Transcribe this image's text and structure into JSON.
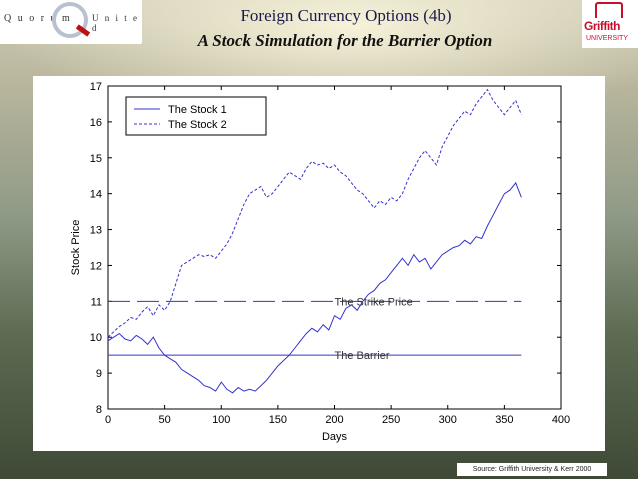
{
  "header": {
    "title": "Foreign Currency Options (4b)",
    "subtitle": "A Stock Simulation for the Barrier Option"
  },
  "logos": {
    "left_word1": "Q u o r u m",
    "left_word2": "U n i t e d",
    "right_name": "Griffith",
    "right_sub": "UNIVERSITY"
  },
  "source": "Source: Griffith University & Kerr 2000",
  "colors": {
    "line": "#3333cc",
    "header": "#1a1a4a"
  },
  "chart_data": {
    "type": "line",
    "title": "",
    "xlabel": "Days",
    "ylabel": "Stock Price",
    "xlim": [
      0,
      400
    ],
    "ylim": [
      8,
      17
    ],
    "xticks": [
      0,
      50,
      100,
      150,
      200,
      250,
      300,
      350,
      400
    ],
    "yticks": [
      8,
      9,
      10,
      11,
      12,
      13,
      14,
      15,
      16,
      17
    ],
    "grid": false,
    "legend_position": "top-left",
    "series": [
      {
        "name": "The Stock 1",
        "style": "solid",
        "x": [
          0,
          5,
          10,
          15,
          20,
          25,
          30,
          35,
          40,
          45,
          50,
          55,
          60,
          65,
          70,
          75,
          80,
          85,
          90,
          95,
          100,
          105,
          110,
          115,
          120,
          125,
          130,
          135,
          140,
          145,
          150,
          155,
          160,
          165,
          170,
          175,
          180,
          185,
          190,
          195,
          200,
          205,
          210,
          215,
          220,
          225,
          230,
          235,
          240,
          245,
          250,
          255,
          260,
          265,
          270,
          275,
          280,
          285,
          290,
          295,
          300,
          305,
          310,
          315,
          320,
          325,
          330,
          335,
          340,
          345,
          350,
          355,
          360,
          365
        ],
        "values": [
          9.9,
          10.0,
          10.1,
          9.95,
          9.9,
          10.05,
          9.95,
          9.8,
          10.0,
          9.7,
          9.5,
          9.4,
          9.3,
          9.1,
          9.0,
          8.9,
          8.8,
          8.65,
          8.6,
          8.5,
          8.75,
          8.55,
          8.45,
          8.6,
          8.5,
          8.55,
          8.5,
          8.65,
          8.8,
          9.0,
          9.2,
          9.35,
          9.5,
          9.7,
          9.9,
          10.1,
          10.25,
          10.15,
          10.35,
          10.2,
          10.6,
          10.5,
          10.8,
          10.9,
          10.75,
          11.0,
          11.2,
          11.3,
          11.5,
          11.6,
          11.8,
          12.0,
          12.2,
          12.0,
          12.3,
          12.1,
          12.2,
          11.9,
          12.1,
          12.3,
          12.4,
          12.5,
          12.55,
          12.7,
          12.6,
          12.8,
          12.75,
          13.1,
          13.4,
          13.7,
          14.0,
          14.1,
          14.3,
          13.9
        ]
      },
      {
        "name": "The Stock 2",
        "style": "dashed",
        "x": [
          0,
          5,
          10,
          15,
          20,
          25,
          30,
          35,
          40,
          45,
          50,
          55,
          60,
          65,
          70,
          75,
          80,
          85,
          90,
          95,
          100,
          105,
          110,
          115,
          120,
          125,
          130,
          135,
          140,
          145,
          150,
          155,
          160,
          165,
          170,
          175,
          180,
          185,
          190,
          195,
          200,
          205,
          210,
          215,
          220,
          225,
          230,
          235,
          240,
          245,
          250,
          255,
          260,
          265,
          270,
          275,
          280,
          285,
          290,
          295,
          300,
          305,
          310,
          315,
          320,
          325,
          330,
          335,
          340,
          345,
          350,
          355,
          360,
          365
        ],
        "values": [
          10.0,
          10.15,
          10.3,
          10.4,
          10.55,
          10.5,
          10.7,
          10.85,
          10.6,
          10.9,
          10.75,
          11.0,
          11.5,
          12.0,
          12.1,
          12.2,
          12.3,
          12.25,
          12.3,
          12.2,
          12.4,
          12.6,
          12.9,
          13.3,
          13.7,
          14.0,
          14.1,
          14.2,
          13.9,
          14.0,
          14.2,
          14.4,
          14.6,
          14.5,
          14.4,
          14.7,
          14.9,
          14.8,
          14.85,
          14.7,
          14.8,
          14.6,
          14.5,
          14.3,
          14.1,
          14.0,
          13.8,
          13.6,
          13.8,
          13.7,
          13.9,
          13.8,
          14.0,
          14.4,
          14.7,
          15.0,
          15.2,
          15.0,
          14.8,
          15.3,
          15.6,
          15.9,
          16.1,
          16.3,
          16.2,
          16.5,
          16.7,
          16.9,
          16.6,
          16.4,
          16.2,
          16.4,
          16.6,
          16.2
        ]
      }
    ],
    "reference_lines": [
      {
        "label": "The Strike Price",
        "value": 11,
        "style": "long-dash"
      },
      {
        "label": "The Barrier",
        "value": 9.5,
        "style": "solid"
      }
    ]
  }
}
